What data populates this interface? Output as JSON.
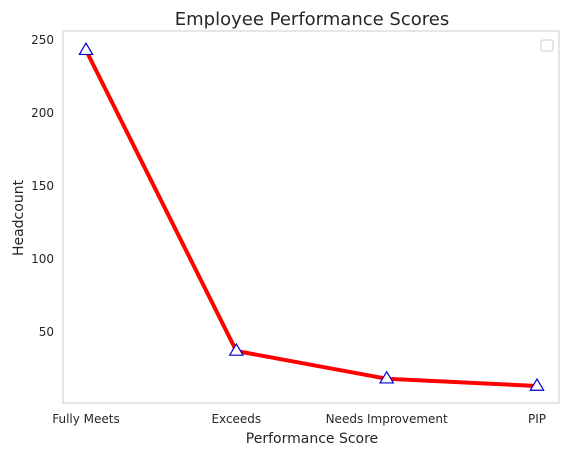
{
  "chart_data": {
    "type": "line",
    "title": "Employee Performance Scores",
    "xlabel": "Performance Score",
    "ylabel": "Headcount",
    "categories": [
      "Fully Meets",
      "Exceeds",
      "Needs Improvement",
      "PIP"
    ],
    "series": [
      {
        "values": [
          243,
          37,
          18,
          13
        ],
        "color": "#ff0000",
        "marker": "triangle",
        "marker_edge_color": "#0000cc",
        "marker_face_color": "#ffffff"
      }
    ],
    "yticks": [
      50,
      100,
      150,
      200,
      250
    ],
    "ylim": [
      0,
      255
    ],
    "grid": false,
    "legend": "top-right (empty box)"
  }
}
